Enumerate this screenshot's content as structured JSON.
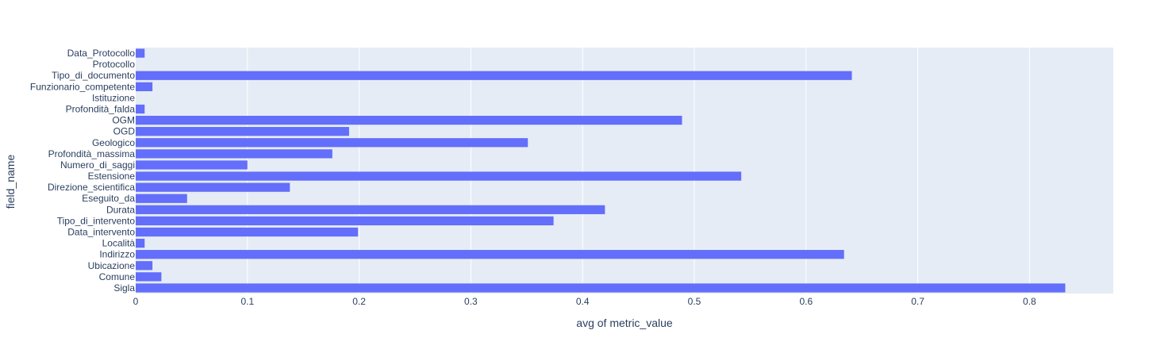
{
  "chart_data": {
    "type": "bar",
    "orientation": "horizontal",
    "xlabel": "avg of metric_value",
    "ylabel": "field_name",
    "xlim": [
      0,
      0.875
    ],
    "xticks": [
      0,
      0.1,
      0.2,
      0.3,
      0.4,
      0.5,
      0.6,
      0.7,
      0.8
    ],
    "xtick_labels": [
      "0",
      "0.1",
      "0.2",
      "0.3",
      "0.4",
      "0.5",
      "0.6",
      "0.7",
      "0.8"
    ],
    "grid": true,
    "bar_color": "#636efa",
    "plot_bg": "#e5ecf6",
    "categories": [
      "Sigla",
      "Comune",
      "Ubicazione",
      "Indirizzo",
      "Località",
      "Data_intervento",
      "Tipo_di_intervento",
      "Durata",
      "Eseguito_da",
      "Direzione_scientifica",
      "Estensione",
      "Numero_di_saggi",
      "Profondità_massima",
      "Geologico",
      "OGD",
      "OGM",
      "Profondità_falda",
      "Istituzione",
      "Funzionario_competente",
      "Tipo_di_documento",
      "Protocollo",
      "Data_Protocollo"
    ],
    "values": [
      0.832,
      0.023,
      0.015,
      0.634,
      0.008,
      0.199,
      0.374,
      0.42,
      0.046,
      0.138,
      0.542,
      0.1,
      0.176,
      0.351,
      0.191,
      0.489,
      0.008,
      0.0,
      0.015,
      0.641,
      0.0,
      0.008
    ]
  }
}
